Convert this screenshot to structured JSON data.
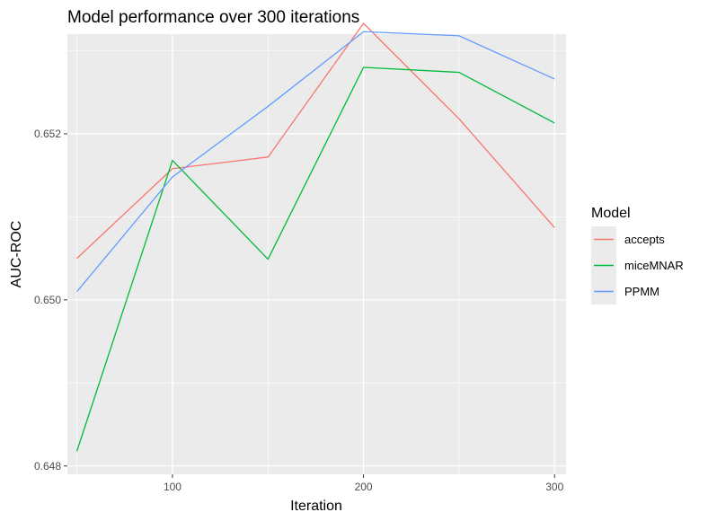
{
  "chart_data": {
    "type": "line",
    "title": "Model performance over 300 iterations",
    "xlabel": "Iteration",
    "ylabel": "AUC-ROC",
    "x": [
      50,
      100,
      150,
      200,
      250,
      300
    ],
    "xlim": [
      45,
      306
    ],
    "ylim": [
      0.6479,
      0.6532
    ],
    "xticks": [
      100,
      200,
      300
    ],
    "xtick_labels": [
      "100",
      "200",
      "300"
    ],
    "yticks": [
      0.648,
      0.65,
      0.652
    ],
    "ytick_labels": [
      "0.648",
      "0.650",
      "0.652"
    ],
    "grid": true,
    "legend": {
      "title": "Model",
      "position": "right"
    },
    "series": [
      {
        "name": "accepts",
        "color": "#F8766D",
        "values": [
          0.6505,
          0.65158,
          0.65172,
          0.65333,
          0.65218,
          0.65087
        ]
      },
      {
        "name": "miceMNAR",
        "color": "#00BA38",
        "values": [
          0.64818,
          0.65168,
          0.65049,
          0.6528,
          0.65274,
          0.65213
        ]
      },
      {
        "name": "PPMM",
        "color": "#619CFF",
        "values": [
          0.6501,
          0.65148,
          0.65233,
          0.65323,
          0.65318,
          0.65266
        ]
      }
    ]
  }
}
